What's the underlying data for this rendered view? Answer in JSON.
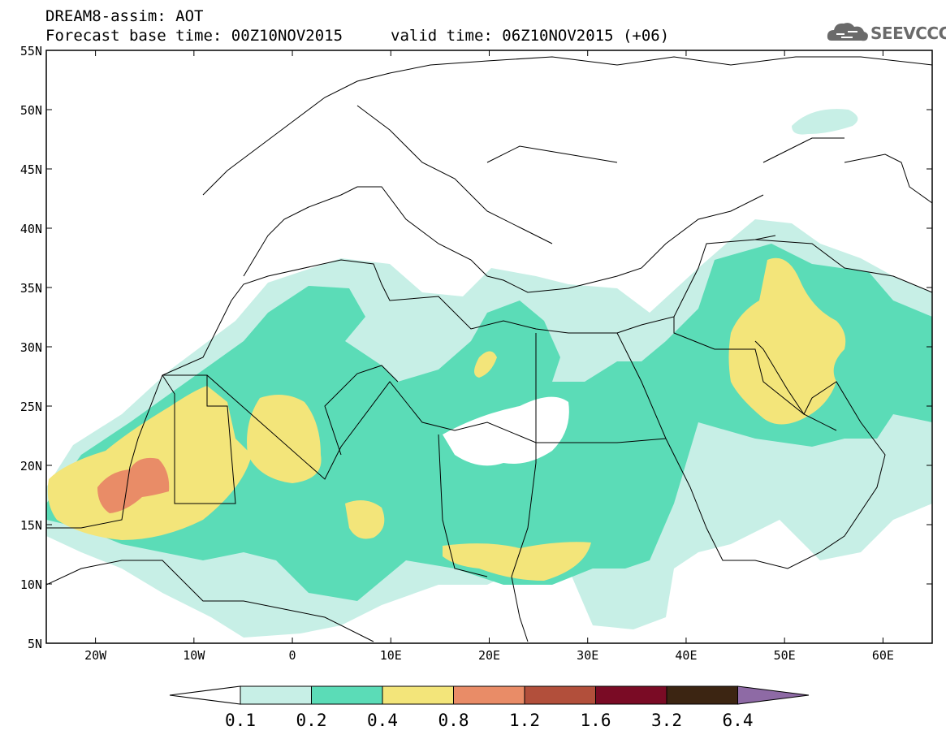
{
  "header": {
    "model": "DREAM8-assim: AOT",
    "base_time": "Forecast base time: 00Z10NOV2015",
    "valid_time": "valid time: 06Z10NOV2015 (+06)"
  },
  "logo": {
    "text": "SEEVCCC",
    "icon": "cloud-logo-icon"
  },
  "map": {
    "lat_labels": [
      "55N",
      "50N",
      "45N",
      "40N",
      "35N",
      "30N",
      "25N",
      "20N",
      "15N",
      "10N",
      "5N"
    ],
    "lon_labels": [
      "20W",
      "10W",
      "0",
      "10E",
      "20E",
      "30E",
      "40E",
      "50E",
      "60E"
    ]
  },
  "colorbar": {
    "labels": [
      "0.1",
      "0.2",
      "0.4",
      "0.8",
      "1.2",
      "1.6",
      "3.2",
      "6.4"
    ],
    "colors": [
      "#c7efe6",
      "#5bdcb7",
      "#f3e57a",
      "#e98c67",
      "#b24f3b",
      "#7a0b25",
      "#3c2512",
      "#8e6aa5"
    ]
  }
}
